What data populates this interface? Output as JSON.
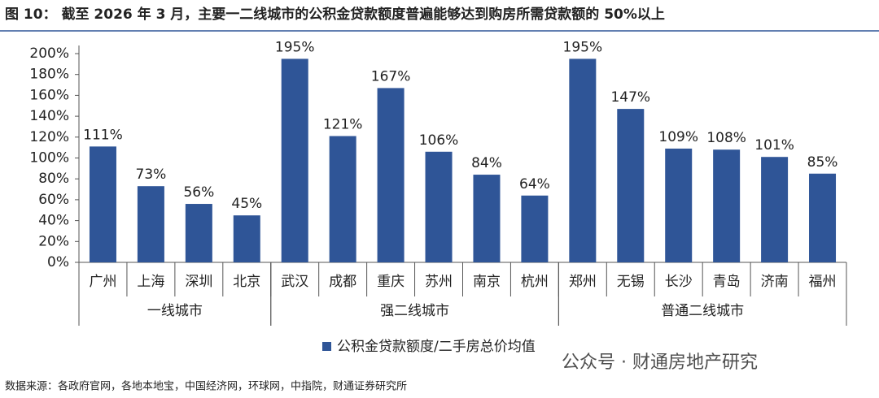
{
  "chart_data": {
    "type": "bar",
    "title": "图 10： 截至 2026 年 3 月，主要一二线城市的公积金贷款额度普遍能够达到购房所需贷款额的 50%以上",
    "categories": [
      "广州",
      "上海",
      "深圳",
      "北京",
      "武汉",
      "成都",
      "重庆",
      "苏州",
      "南京",
      "杭州",
      "郑州",
      "无锡",
      "长沙",
      "青岛",
      "济南",
      "福州"
    ],
    "category_groups": [
      "一线城市",
      "一线城市",
      "一线城市",
      "一线城市",
      "强二线城市",
      "强二线城市",
      "强二线城市",
      "强二线城市",
      "强二线城市",
      "强二线城市",
      "普通二线城市",
      "普通二线城市",
      "普通二线城市",
      "普通二线城市",
      "普通二线城市",
      "普通二线城市"
    ],
    "series": [
      {
        "name": "公积金贷款额度/二手房总价均值",
        "color": "#2f5597",
        "values": [
          111,
          73,
          56,
          45,
          195,
          121,
          167,
          106,
          84,
          64,
          195,
          147,
          109,
          108,
          101,
          85
        ],
        "value_labels": [
          "111%",
          "73%",
          "56%",
          "45%",
          "195%",
          "121%",
          "167%",
          "106%",
          "84%",
          "64%",
          "195%",
          "147%",
          "109%",
          "108%",
          "101%",
          "85%"
        ]
      }
    ],
    "ylim": [
      0,
      200
    ],
    "yticks": [
      {
        "value": 0,
        "label": "0%"
      },
      {
        "value": 20,
        "label": "20%"
      },
      {
        "value": 40,
        "label": "40%"
      },
      {
        "value": 60,
        "label": "60%"
      },
      {
        "value": 80,
        "label": "80%"
      },
      {
        "value": 100,
        "label": "100%"
      },
      {
        "value": 120,
        "label": "120%"
      },
      {
        "value": 140,
        "label": "140%"
      },
      {
        "value": 160,
        "label": "160%"
      },
      {
        "value": 180,
        "label": "180%"
      },
      {
        "value": 200,
        "label": "200%"
      }
    ],
    "grid": false,
    "legend": "bottom",
    "watermark": "公众号 · 财通房地产研究",
    "source": "数据来源：各政府官网，各地本地宝，中国经济网，环球网，中指院，财通证券研究所"
  }
}
